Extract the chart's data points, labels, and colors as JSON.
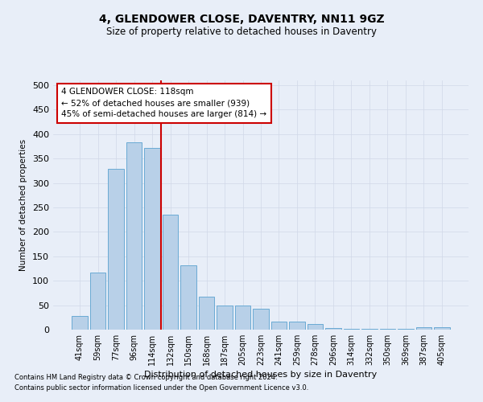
{
  "title": "4, GLENDOWER CLOSE, DAVENTRY, NN11 9GZ",
  "subtitle": "Size of property relative to detached houses in Daventry",
  "xlabel": "Distribution of detached houses by size in Daventry",
  "ylabel": "Number of detached properties",
  "categories": [
    "41sqm",
    "59sqm",
    "77sqm",
    "96sqm",
    "114sqm",
    "132sqm",
    "150sqm",
    "168sqm",
    "187sqm",
    "205sqm",
    "223sqm",
    "241sqm",
    "259sqm",
    "278sqm",
    "296sqm",
    "314sqm",
    "332sqm",
    "350sqm",
    "369sqm",
    "387sqm",
    "405sqm"
  ],
  "values": [
    28,
    116,
    329,
    383,
    372,
    236,
    132,
    68,
    50,
    49,
    43,
    17,
    17,
    11,
    4,
    2,
    1,
    1,
    1,
    5,
    5
  ],
  "bar_color": "#b8d0e8",
  "bar_edge_color": "#6aaad4",
  "vline_color": "#cc0000",
  "annotation_box_color": "#ffffff",
  "annotation_box_edge_color": "#cc0000",
  "annotation_title": "4 GLENDOWER CLOSE: 118sqm",
  "annotation_line1": "← 52% of detached houses are smaller (939)",
  "annotation_line2": "45% of semi-detached houses are larger (814) →",
  "grid_color": "#d0d8e8",
  "background_color": "#e8eef8",
  "ylim": [
    0,
    510
  ],
  "yticks": [
    0,
    50,
    100,
    150,
    200,
    250,
    300,
    350,
    400,
    450,
    500
  ],
  "footer1": "Contains HM Land Registry data © Crown copyright and database right 2024.",
  "footer2": "Contains public sector information licensed under the Open Government Licence v3.0."
}
